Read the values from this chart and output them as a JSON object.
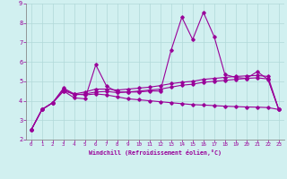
{
  "xlabel": "Windchill (Refroidissement éolien,°C)",
  "xlim": [
    -0.5,
    23.5
  ],
  "ylim": [
    2,
    9
  ],
  "xticks": [
    0,
    1,
    2,
    3,
    4,
    5,
    6,
    7,
    8,
    9,
    10,
    11,
    12,
    13,
    14,
    15,
    16,
    17,
    18,
    19,
    20,
    21,
    22,
    23
  ],
  "yticks": [
    2,
    3,
    4,
    5,
    6,
    7,
    8,
    9
  ],
  "background_color": "#d1f0f0",
  "line_color": "#990099",
  "grid_color": "#b0d8d8",
  "line1_y": [
    2.5,
    3.55,
    3.9,
    4.5,
    4.15,
    4.1,
    5.85,
    4.75,
    4.45,
    4.45,
    4.45,
    4.5,
    4.5,
    6.6,
    8.3,
    7.15,
    8.55,
    7.3,
    5.35,
    5.2,
    5.15,
    5.5,
    5.1,
    3.55
  ],
  "line2_y": [
    2.5,
    3.55,
    3.9,
    4.5,
    4.35,
    4.45,
    4.6,
    4.6,
    4.55,
    4.6,
    4.65,
    4.7,
    4.78,
    4.88,
    4.95,
    5.0,
    5.1,
    5.15,
    5.2,
    5.25,
    5.28,
    5.3,
    5.25,
    3.55
  ],
  "line3_y": [
    2.5,
    3.55,
    3.9,
    4.65,
    4.35,
    4.3,
    4.35,
    4.3,
    4.2,
    4.1,
    4.05,
    4.0,
    3.95,
    3.9,
    3.85,
    3.8,
    3.78,
    3.75,
    3.72,
    3.7,
    3.68,
    3.67,
    3.65,
    3.55
  ],
  "line4_y": [
    2.5,
    3.55,
    3.9,
    4.6,
    4.3,
    4.35,
    4.45,
    4.48,
    4.42,
    4.45,
    4.5,
    4.55,
    4.6,
    4.7,
    4.8,
    4.85,
    4.95,
    5.0,
    5.05,
    5.1,
    5.15,
    5.18,
    5.12,
    3.55
  ]
}
